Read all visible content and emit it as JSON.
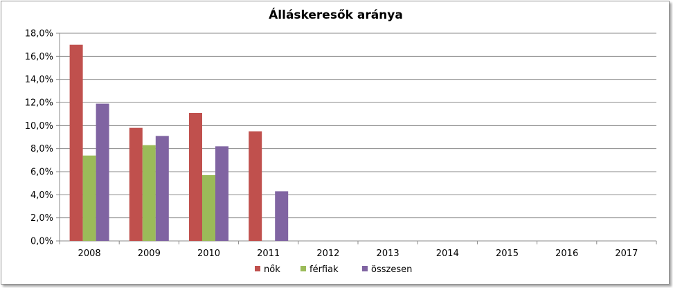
{
  "chart_data": {
    "type": "bar",
    "title": "Álláskeresők aránya",
    "xlabel": "",
    "ylabel": "",
    "categories": [
      "2008",
      "2009",
      "2010",
      "2011",
      "2012",
      "2013",
      "2014",
      "2015",
      "2016",
      "2017"
    ],
    "series": [
      {
        "name": "nők",
        "color": "#C0504D",
        "values": [
          17.0,
          9.8,
          11.1,
          9.5,
          null,
          null,
          null,
          null,
          null,
          null
        ]
      },
      {
        "name": "férfiak",
        "color": "#9BBB59",
        "values": [
          7.4,
          8.3,
          5.7,
          null,
          null,
          null,
          null,
          null,
          null,
          null
        ]
      },
      {
        "name": "összesen",
        "color": "#8064A2",
        "values": [
          11.9,
          9.1,
          8.2,
          4.3,
          null,
          null,
          null,
          null,
          null,
          null
        ]
      }
    ],
    "ylim": [
      0,
      18
    ],
    "yticks": [
      "0,0%",
      "2,0%",
      "4,0%",
      "6,0%",
      "8,0%",
      "10,0%",
      "12,0%",
      "14,0%",
      "16,0%",
      "18,0%"
    ],
    "grid": true,
    "legend": "bottom"
  }
}
